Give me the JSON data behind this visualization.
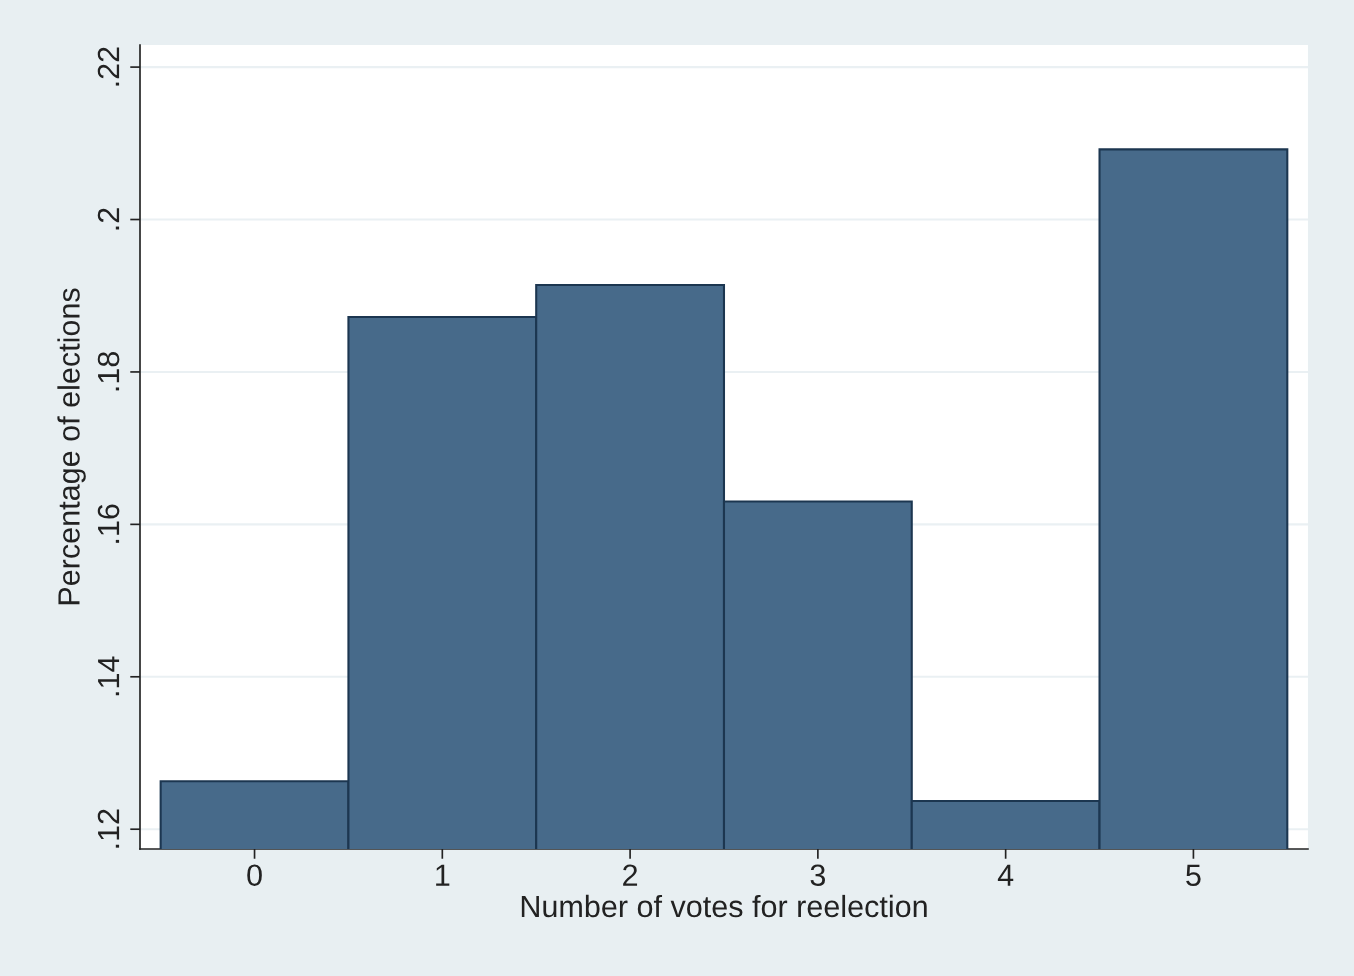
{
  "chart_data": {
    "type": "histogram",
    "xlabel": "Number of votes for reelection",
    "ylabel": "Percentage of elections",
    "bins": [
      -0.5,
      0.5,
      1.5,
      2.5,
      3.5,
      4.5,
      5.5
    ],
    "values": [
      0.1263,
      0.1872,
      0.1914,
      0.163,
      0.1237,
      0.2092
    ],
    "color": "#476a8a",
    "xlim": [
      -0.61,
      5.61
    ],
    "xticks": [
      0,
      1,
      2,
      3,
      4,
      5
    ],
    "ylim": [
      0.1174,
      0.2229
    ],
    "yticks": [
      {
        "value": 0.12,
        "label": ".12"
      },
      {
        "value": 0.14,
        "label": ".14"
      },
      {
        "value": 0.16,
        "label": ".16"
      },
      {
        "value": 0.18,
        "label": ".18"
      },
      {
        "value": 0.2,
        "label": ".2"
      },
      {
        "value": 0.22,
        "label": ".22"
      }
    ],
    "grid": "y"
  }
}
